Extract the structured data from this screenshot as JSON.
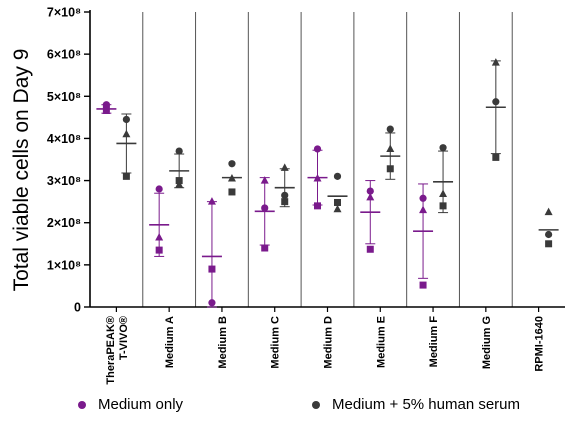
{
  "colors": {
    "medium_only": "#7a1a8c",
    "with_serum": "#3a3a3a",
    "axis": "#000000",
    "divider": "#555555"
  },
  "legend": [
    {
      "label": "Medium only",
      "color": "#7a1a8c"
    },
    {
      "label": "Medium + 5% human serum",
      "color": "#3a3a3a"
    }
  ],
  "chart_data": {
    "type": "scatter",
    "ylabel": "Total viable cells on Day 9",
    "ylim": [
      0,
      700000000
    ],
    "y_ticks": [
      {
        "value": 0,
        "label": "0"
      },
      {
        "value": 100000000,
        "label": "1×10⁸"
      },
      {
        "value": 200000000,
        "label": "2×10⁸"
      },
      {
        "value": 300000000,
        "label": "3×10⁸"
      },
      {
        "value": 400000000,
        "label": "4×10⁸"
      },
      {
        "value": 500000000,
        "label": "5×10⁸"
      },
      {
        "value": 600000000,
        "label": "6×10⁸"
      },
      {
        "value": 700000000,
        "label": "7×10⁸"
      }
    ],
    "categories": [
      {
        "line1": "TheraPEAK®",
        "line2": "T-VIVO®"
      },
      {
        "line1": "Medium A"
      },
      {
        "line1": "Medium B"
      },
      {
        "line1": "Medium C"
      },
      {
        "line1": "Medium D"
      },
      {
        "line1": "Medium E"
      },
      {
        "line1": "Medium F"
      },
      {
        "line1": "Medium G"
      },
      {
        "line1": "RPMI-1640"
      }
    ],
    "markers_note": "marker shape = donor (circle, triangle, square)",
    "series": [
      {
        "name": "Medium only",
        "color": "#7a1a8c",
        "groups": [
          {
            "category": 0,
            "mean": 470000000,
            "sd": 10000000,
            "points": [
              {
                "shape": "circle",
                "y": 480000000
              },
              {
                "shape": "triangle",
                "y": 465000000
              },
              {
                "shape": "square",
                "y": 470000000
              }
            ]
          },
          {
            "category": 1,
            "mean": 195000000,
            "sd": 75000000,
            "points": [
              {
                "shape": "circle",
                "y": 280000000
              },
              {
                "shape": "triangle",
                "y": 165000000
              },
              {
                "shape": "square",
                "y": 135000000
              }
            ]
          },
          {
            "category": 2,
            "mean": 120000000,
            "sd": 130000000,
            "points": [
              {
                "shape": "circle",
                "y": 10000000
              },
              {
                "shape": "triangle",
                "y": 250000000
              },
              {
                "shape": "square",
                "y": 90000000
              }
            ]
          },
          {
            "category": 3,
            "mean": 227000000,
            "sd": 80000000,
            "points": [
              {
                "shape": "circle",
                "y": 235000000
              },
              {
                "shape": "triangle",
                "y": 300000000
              },
              {
                "shape": "square",
                "y": 140000000
              }
            ]
          },
          {
            "category": 4,
            "mean": 307000000,
            "sd": 65000000,
            "points": [
              {
                "shape": "circle",
                "y": 375000000
              },
              {
                "shape": "triangle",
                "y": 305000000
              },
              {
                "shape": "square",
                "y": 240000000
              }
            ]
          },
          {
            "category": 5,
            "mean": 225000000,
            "sd": 75000000,
            "points": [
              {
                "shape": "circle",
                "y": 275000000
              },
              {
                "shape": "triangle",
                "y": 260000000
              },
              {
                "shape": "square",
                "y": 137000000
              }
            ]
          },
          {
            "category": 6,
            "mean": 180000000,
            "sd": 112000000,
            "points": [
              {
                "shape": "circle",
                "y": 258000000
              },
              {
                "shape": "triangle",
                "y": 230000000
              },
              {
                "shape": "square",
                "y": 52000000
              }
            ]
          }
        ]
      },
      {
        "name": "Medium + 5% human serum",
        "color": "#3a3a3a",
        "groups": [
          {
            "category": 0,
            "mean": 388000000,
            "sd": 70000000,
            "points": [
              {
                "shape": "circle",
                "y": 445000000
              },
              {
                "shape": "triangle",
                "y": 410000000
              },
              {
                "shape": "square",
                "y": 310000000
              }
            ]
          },
          {
            "category": 1,
            "mean": 323000000,
            "sd": 40000000,
            "points": [
              {
                "shape": "circle",
                "y": 370000000
              },
              {
                "shape": "triangle",
                "y": 290000000
              },
              {
                "shape": "square",
                "y": 300000000
              }
            ]
          },
          {
            "category": 2,
            "mean": 307000000,
            "sd": 0,
            "points": [
              {
                "shape": "circle",
                "y": 340000000
              },
              {
                "shape": "triangle",
                "y": 305000000
              },
              {
                "shape": "square",
                "y": 273000000
              }
            ]
          },
          {
            "category": 3,
            "mean": 283000000,
            "sd": 45000000,
            "points": [
              {
                "shape": "circle",
                "y": 265000000
              },
              {
                "shape": "triangle",
                "y": 330000000
              },
              {
                "shape": "square",
                "y": 250000000
              }
            ]
          },
          {
            "category": 4,
            "mean": 263000000,
            "sd": 0,
            "points": [
              {
                "shape": "circle",
                "y": 310000000
              },
              {
                "shape": "triangle",
                "y": 232000000
              },
              {
                "shape": "square",
                "y": 248000000
              }
            ]
          },
          {
            "category": 5,
            "mean": 358000000,
            "sd": 55000000,
            "points": [
              {
                "shape": "circle",
                "y": 422000000
              },
              {
                "shape": "triangle",
                "y": 375000000
              },
              {
                "shape": "square",
                "y": 328000000
              }
            ]
          },
          {
            "category": 6,
            "mean": 297000000,
            "sd": 73000000,
            "points": [
              {
                "shape": "circle",
                "y": 378000000
              },
              {
                "shape": "triangle",
                "y": 268000000
              },
              {
                "shape": "square",
                "y": 240000000
              }
            ]
          },
          {
            "category": 7,
            "mean": 474000000,
            "sd": 110000000,
            "points": [
              {
                "shape": "circle",
                "y": 487000000
              },
              {
                "shape": "triangle",
                "y": 580000000
              },
              {
                "shape": "square",
                "y": 355000000
              }
            ]
          },
          {
            "category": 8,
            "mean": 183000000,
            "sd": 0,
            "points": [
              {
                "shape": "circle",
                "y": 172000000
              },
              {
                "shape": "triangle",
                "y": 225000000
              },
              {
                "shape": "square",
                "y": 150000000
              }
            ]
          }
        ]
      }
    ]
  }
}
